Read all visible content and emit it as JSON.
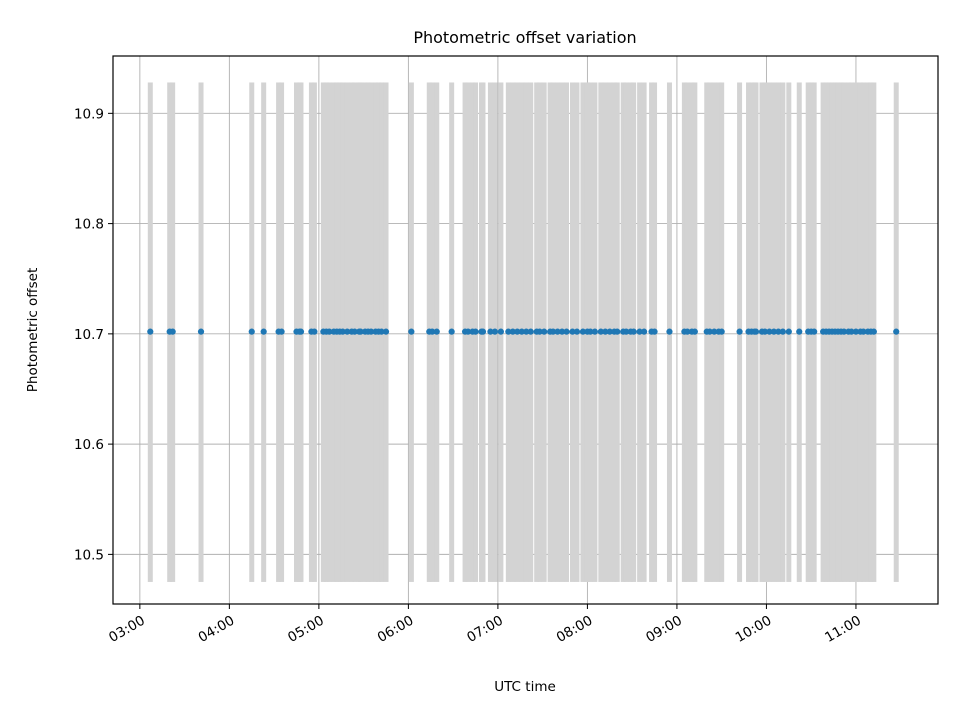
{
  "chart_data": {
    "type": "scatter",
    "title": "Photometric offset variation",
    "xlabel": "UTC time",
    "ylabel": "Photometric offset",
    "x_ticks": [
      "03:00",
      "04:00",
      "05:00",
      "06:00",
      "07:00",
      "08:00",
      "09:00",
      "10:00",
      "11:00"
    ],
    "y_ticks": [
      "10.5",
      "10.6",
      "10.7",
      "10.8",
      "10.9"
    ],
    "xlim": [
      "02:42",
      "11:55"
    ],
    "ylim": [
      10.455,
      10.952
    ],
    "grid": true,
    "bands": {
      "color": "#d3d3d3",
      "y_range": [
        10.475,
        10.928
      ],
      "times": [
        "03:07",
        "03:20",
        "03:22",
        "03:41",
        "04:15",
        "04:23",
        "04:33",
        "04:35",
        "04:45",
        "04:47",
        "04:48",
        "04:55",
        "04:57",
        "05:03",
        "05:05",
        "05:07",
        "05:10",
        "05:12",
        "05:14",
        "05:16",
        "05:19",
        "05:22",
        "05:24",
        "05:27",
        "05:28",
        "05:31",
        "05:33",
        "05:35",
        "05:38",
        "05:40",
        "05:42",
        "05:45",
        "06:02",
        "06:14",
        "06:16",
        "06:19",
        "06:29",
        "06:38",
        "06:40",
        "06:43",
        "06:45",
        "06:49",
        "06:50",
        "06:55",
        "06:58",
        "07:02",
        "07:07",
        "07:10",
        "07:13",
        "07:16",
        "07:19",
        "07:22",
        "07:26",
        "07:28",
        "07:31",
        "07:35",
        "07:37",
        "07:40",
        "07:43",
        "07:46",
        "07:50",
        "07:53",
        "07:57",
        "08:00",
        "08:02",
        "08:05",
        "08:09",
        "08:12",
        "08:15",
        "08:18",
        "08:20",
        "08:24",
        "08:26",
        "08:29",
        "08:31",
        "08:35",
        "08:38",
        "08:43",
        "08:45",
        "08:55",
        "09:05",
        "09:07",
        "09:10",
        "09:12",
        "09:20",
        "09:22",
        "09:25",
        "09:28",
        "09:30",
        "09:42",
        "09:48",
        "09:50",
        "09:52",
        "09:53",
        "09:57",
        "09:59",
        "10:02",
        "10:05",
        "10:08",
        "10:11",
        "10:15",
        "10:22",
        "10:28",
        "10:30",
        "10:32",
        "10:38",
        "10:40",
        "10:42",
        "10:44",
        "10:46",
        "10:48",
        "10:50",
        "10:52",
        "10:55",
        "10:57",
        "11:00",
        "11:03",
        "11:05",
        "11:08",
        "11:10",
        "11:12",
        "11:27"
      ]
    },
    "series": [
      {
        "color": "#1f77b4",
        "x": [
          "03:07",
          "03:20",
          "03:22",
          "03:41",
          "04:15",
          "04:23",
          "04:33",
          "04:35",
          "04:45",
          "04:47",
          "04:48",
          "04:55",
          "04:57",
          "05:03",
          "05:05",
          "05:07",
          "05:10",
          "05:12",
          "05:14",
          "05:16",
          "05:19",
          "05:22",
          "05:24",
          "05:27",
          "05:28",
          "05:31",
          "05:33",
          "05:35",
          "05:38",
          "05:40",
          "05:42",
          "05:45",
          "06:02",
          "06:14",
          "06:16",
          "06:19",
          "06:29",
          "06:38",
          "06:40",
          "06:43",
          "06:45",
          "06:49",
          "06:50",
          "06:55",
          "06:58",
          "07:02",
          "07:07",
          "07:10",
          "07:13",
          "07:16",
          "07:19",
          "07:22",
          "07:26",
          "07:28",
          "07:31",
          "07:35",
          "07:37",
          "07:40",
          "07:43",
          "07:46",
          "07:50",
          "07:53",
          "07:57",
          "08:00",
          "08:02",
          "08:05",
          "08:09",
          "08:12",
          "08:15",
          "08:18",
          "08:20",
          "08:24",
          "08:26",
          "08:29",
          "08:31",
          "08:35",
          "08:38",
          "08:43",
          "08:45",
          "08:55",
          "09:05",
          "09:07",
          "09:10",
          "09:12",
          "09:20",
          "09:22",
          "09:25",
          "09:28",
          "09:30",
          "09:42",
          "09:48",
          "09:50",
          "09:52",
          "09:53",
          "09:57",
          "09:59",
          "10:02",
          "10:05",
          "10:08",
          "10:11",
          "10:15",
          "10:22",
          "10:28",
          "10:30",
          "10:32",
          "10:38",
          "10:40",
          "10:42",
          "10:44",
          "10:46",
          "10:48",
          "10:50",
          "10:52",
          "10:55",
          "10:57",
          "11:00",
          "11:03",
          "11:05",
          "11:08",
          "11:10",
          "11:12",
          "11:27"
        ],
        "y": 10.702
      }
    ]
  }
}
